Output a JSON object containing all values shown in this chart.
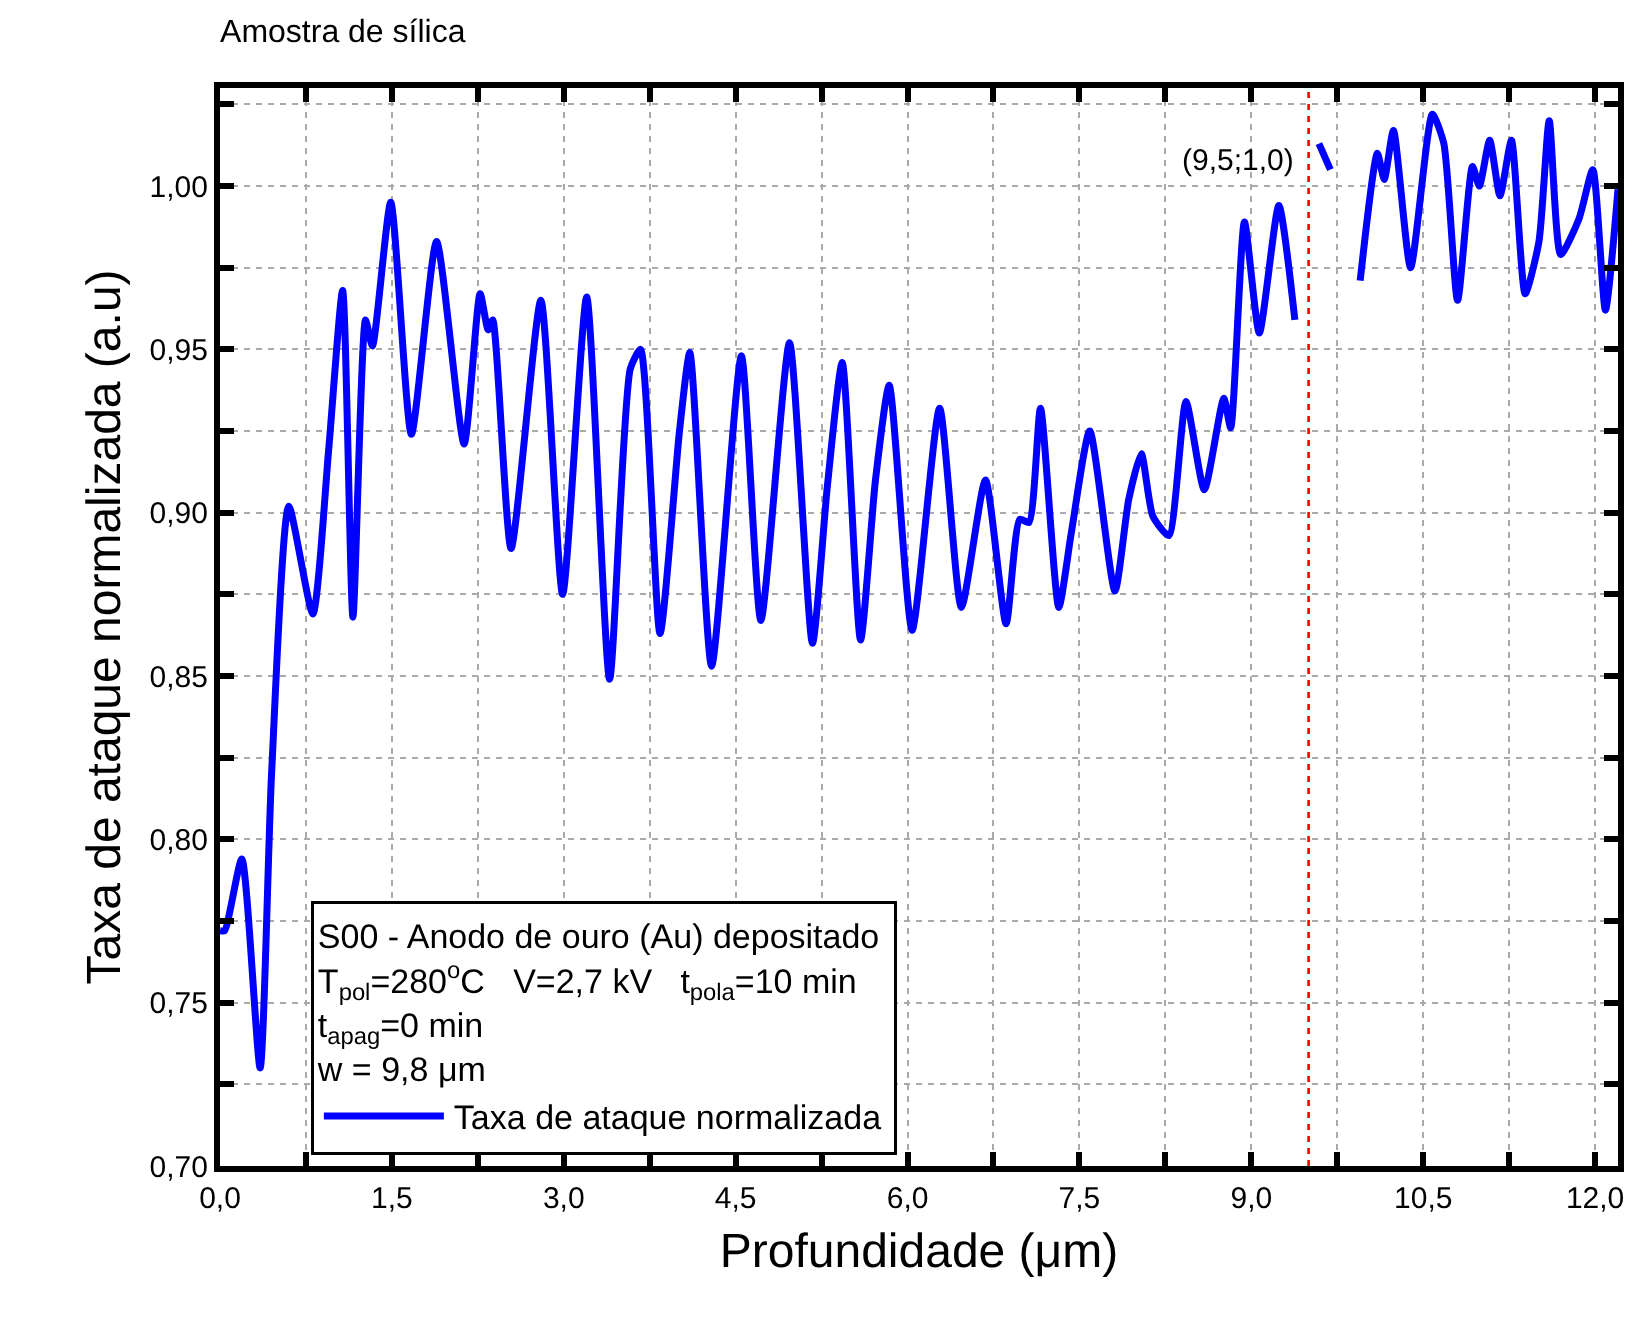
{
  "chart_data": {
    "type": "line",
    "title": "Amostra de sílica",
    "xlabel": "Profundidade (μm)",
    "ylabel": "Taxa de ataque normalizada (a.u)",
    "legend_title": "S00 - Anodo de ouro (Au) depositado\nT$_{pol}$=280$^{o}$C   V=2,7 kV   t$_{pola}$=10 min\nt$_{apag}$=0 min\nw = 9,8 μm",
    "x": [
      0.0,
      0.04,
      0.19,
      0.35,
      0.45,
      0.6,
      0.81,
      0.95,
      1.07,
      1.16,
      1.27,
      1.33,
      1.49,
      1.67,
      1.89,
      2.13,
      2.27,
      2.34,
      2.38,
      2.54,
      2.8,
      2.99,
      3.2,
      3.4,
      3.58,
      3.67,
      3.84,
      4.01,
      4.1,
      4.29,
      4.55,
      4.72,
      4.97,
      5.17,
      5.3,
      5.43,
      5.59,
      5.72,
      5.84,
      6.04,
      6.28,
      6.47,
      6.68,
      6.86,
      6.98,
      7.06,
      7.16,
      7.32,
      7.43,
      7.59,
      7.81,
      7.93,
      8.04,
      8.14,
      8.28,
      8.43,
      8.59,
      8.76,
      8.82,
      8.94,
      9.07,
      9.24,
      9.38,
      9.44,
      9.5,
      9.59,
      9.69,
      9.78,
      9.95,
      10.1,
      10.16,
      10.24,
      10.39,
      10.58,
      10.68,
      10.8,
      10.93,
      10.99,
      11.08,
      11.17,
      11.27,
      11.39,
      11.51,
      11.6,
      11.7,
      11.86,
      11.98,
      12.09,
      12.2
    ],
    "series": [
      {
        "name": "Taxa de ataque normalizada",
        "color": "#0000ff",
        "values": [
          0.772,
          0.772,
          0.794,
          0.73,
          0.82,
          0.902,
          0.869,
          0.92,
          0.968,
          0.868,
          0.959,
          0.951,
          0.995,
          0.924,
          0.983,
          0.921,
          0.967,
          0.956,
          0.959,
          0.889,
          0.965,
          0.875,
          0.966,
          0.849,
          0.944,
          0.95,
          0.863,
          0.925,
          0.949,
          0.853,
          0.948,
          0.867,
          0.952,
          0.86,
          0.908,
          0.946,
          0.861,
          0.91,
          0.939,
          0.864,
          0.932,
          0.871,
          0.91,
          0.866,
          0.898,
          0.897,
          0.932,
          0.871,
          0.894,
          0.925,
          0.876,
          0.904,
          0.918,
          0.899,
          0.893,
          0.934,
          0.907,
          0.935,
          0.926,
          0.989,
          0.955,
          0.994,
          0.959,
          null,
          null,
          1.013,
          1.005,
          null,
          0.971,
          1.01,
          1.002,
          1.017,
          0.975,
          1.022,
          1.013,
          0.965,
          1.006,
          1.0,
          1.014,
          0.997,
          1.014,
          0.967,
          0.983,
          1.02,
          0.979,
          0.99,
          1.005,
          0.962,
          0.999
        ]
      }
    ],
    "xlim": [
      0,
      12.2
    ],
    "xticks": [
      {
        "value": 0,
        "label": "0,0"
      },
      {
        "value": 0.75,
        "label": null
      },
      {
        "value": 1.5,
        "label": "1,5"
      },
      {
        "value": 2.25,
        "label": null
      },
      {
        "value": 3,
        "label": "3,0"
      },
      {
        "value": 3.75,
        "label": null
      },
      {
        "value": 4.5,
        "label": "4,5"
      },
      {
        "value": 5.25,
        "label": null
      },
      {
        "value": 6,
        "label": "6,0"
      },
      {
        "value": 6.75,
        "label": null
      },
      {
        "value": 7.5,
        "label": "7,5"
      },
      {
        "value": 8.25,
        "label": null
      },
      {
        "value": 9,
        "label": "9,0"
      },
      {
        "value": 9.75,
        "label": null
      },
      {
        "value": 10.5,
        "label": "10,5"
      },
      {
        "value": 11.25,
        "label": null
      },
      {
        "value": 12,
        "label": "12,0"
      }
    ],
    "ylim": [
      0.7,
      1.03
    ],
    "yticks": [
      {
        "value": 0.7,
        "label": "0,70"
      },
      {
        "value": 0.725,
        "label": null
      },
      {
        "value": 0.75,
        "label": "0,75"
      },
      {
        "value": 0.775,
        "label": null
      },
      {
        "value": 0.8,
        "label": "0,80"
      },
      {
        "value": 0.825,
        "label": null
      },
      {
        "value": 0.85,
        "label": "0,85"
      },
      {
        "value": 0.875,
        "label": null
      },
      {
        "value": 0.9,
        "label": "0,90"
      },
      {
        "value": 0.925,
        "label": null
      },
      {
        "value": 0.95,
        "label": "0,95"
      },
      {
        "value": 0.975,
        "label": null
      },
      {
        "value": 1.0,
        "label": "1,00"
      },
      {
        "value": 1.025,
        "label": null
      }
    ],
    "ref_lines": [
      {
        "axis": "x",
        "value": 9.5,
        "color": "#ff0000",
        "line_style": "dotted"
      }
    ],
    "annotations": [
      {
        "text": "(9,5;1,0)",
        "x": 9.5,
        "y": 1.0
      }
    ],
    "grid": true,
    "legend": "bottom left",
    "marker": "none",
    "line_style": "solid"
  }
}
